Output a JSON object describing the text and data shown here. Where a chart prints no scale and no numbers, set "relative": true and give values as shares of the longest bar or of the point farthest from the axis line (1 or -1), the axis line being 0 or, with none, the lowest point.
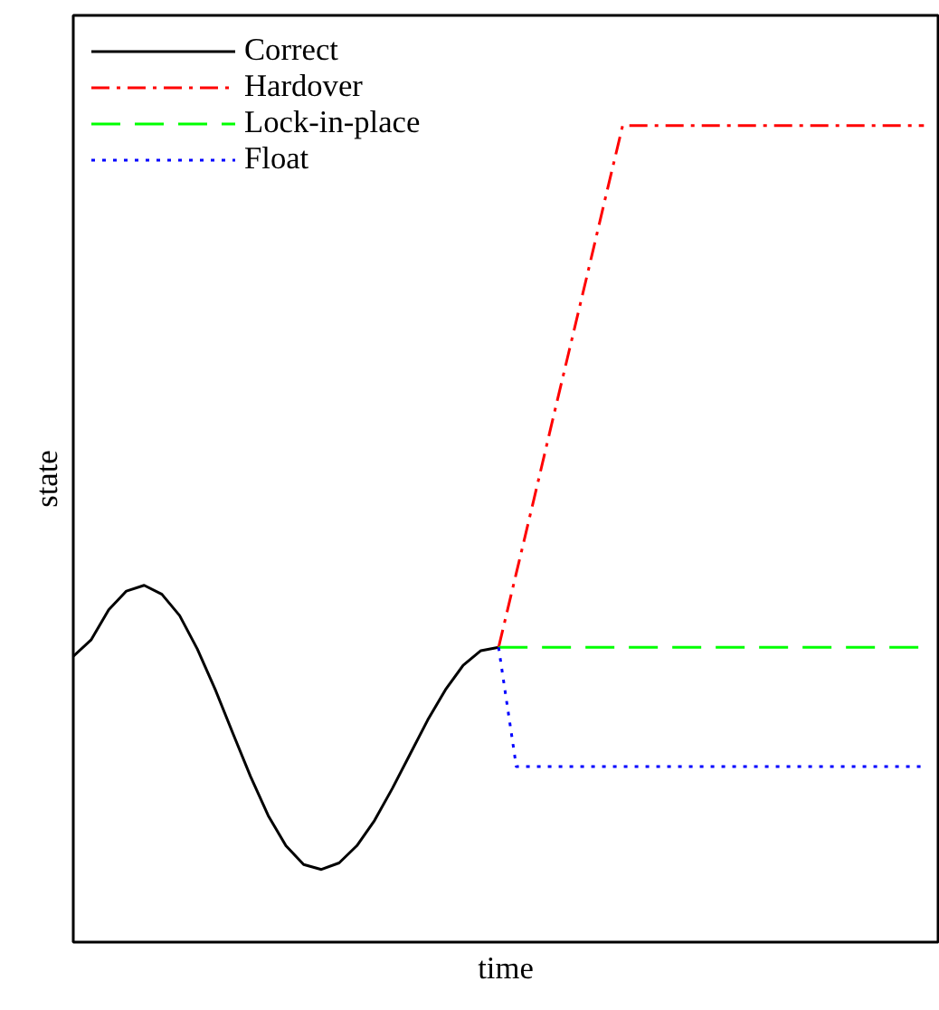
{
  "chart_data": {
    "type": "line",
    "relative": true,
    "xlabel": "time",
    "ylabel": "state",
    "legend": "top left",
    "categories": [
      null,
      null,
      null,
      null,
      null,
      null,
      null,
      null,
      null,
      null,
      null,
      null,
      null,
      null,
      null,
      null,
      null,
      null,
      null,
      null,
      null,
      null,
      null,
      null,
      null,
      null,
      null,
      null,
      null,
      null,
      null,
      null,
      null,
      null,
      null,
      null,
      null,
      null,
      null,
      null,
      null,
      null,
      null,
      null,
      null,
      null,
      null,
      null,
      null
    ],
    "series": [
      {
        "name": "Correct",
        "color": "#000000",
        "line_style": "solid",
        "values": [
          0.35,
          0.37,
          0.407,
          0.43,
          0.437,
          0.426,
          0.4,
          0.359,
          0.31,
          0.256,
          0.203,
          0.155,
          0.118,
          0.095,
          0.089,
          0.097,
          0.118,
          0.149,
          0.188,
          0.23,
          0.272,
          0.309,
          0.339,
          0.357,
          0.361,
          null,
          null,
          null,
          null,
          null,
          null,
          null,
          null,
          null,
          null,
          null,
          null,
          null,
          null,
          null,
          null,
          null,
          null,
          null,
          null,
          null,
          null,
          null,
          null
        ]
      },
      {
        "name": "Hardover",
        "color": "#ff0000",
        "line_style": "dashdot",
        "values": [
          null,
          null,
          null,
          null,
          null,
          null,
          null,
          null,
          null,
          null,
          null,
          null,
          null,
          null,
          null,
          null,
          null,
          null,
          null,
          null,
          null,
          null,
          null,
          null,
          0.361,
          0.452,
          0.543,
          0.635,
          0.726,
          0.817,
          0.909,
          1.0,
          1.0,
          1.0,
          1.0,
          1.0,
          1.0,
          1.0,
          1.0,
          1.0,
          1.0,
          1.0,
          1.0,
          1.0,
          1.0,
          1.0,
          1.0,
          1.0,
          1.0
        ]
      },
      {
        "name": "Lock-in-place",
        "color": "#00ff00",
        "line_style": "dashed",
        "values": [
          null,
          null,
          null,
          null,
          null,
          null,
          null,
          null,
          null,
          null,
          null,
          null,
          null,
          null,
          null,
          null,
          null,
          null,
          null,
          null,
          null,
          null,
          null,
          null,
          0.361,
          0.361,
          0.361,
          0.361,
          0.361,
          0.361,
          0.361,
          0.361,
          0.361,
          0.361,
          0.361,
          0.361,
          0.361,
          0.361,
          0.361,
          0.361,
          0.361,
          0.361,
          0.361,
          0.361,
          0.361,
          0.361,
          0.361,
          0.361,
          0.361
        ]
      },
      {
        "name": "Float",
        "color": "#0000ff",
        "line_style": "dotted",
        "values": [
          null,
          null,
          null,
          null,
          null,
          null,
          null,
          null,
          null,
          null,
          null,
          null,
          null,
          null,
          null,
          null,
          null,
          null,
          null,
          null,
          null,
          null,
          null,
          null,
          0.361,
          0.215,
          0.215,
          0.215,
          0.215,
          0.215,
          0.215,
          0.215,
          0.215,
          0.215,
          0.215,
          0.215,
          0.215,
          0.215,
          0.215,
          0.215,
          0.215,
          0.215,
          0.215,
          0.215,
          0.215,
          0.215,
          0.215,
          0.215,
          0.215
        ]
      }
    ]
  }
}
